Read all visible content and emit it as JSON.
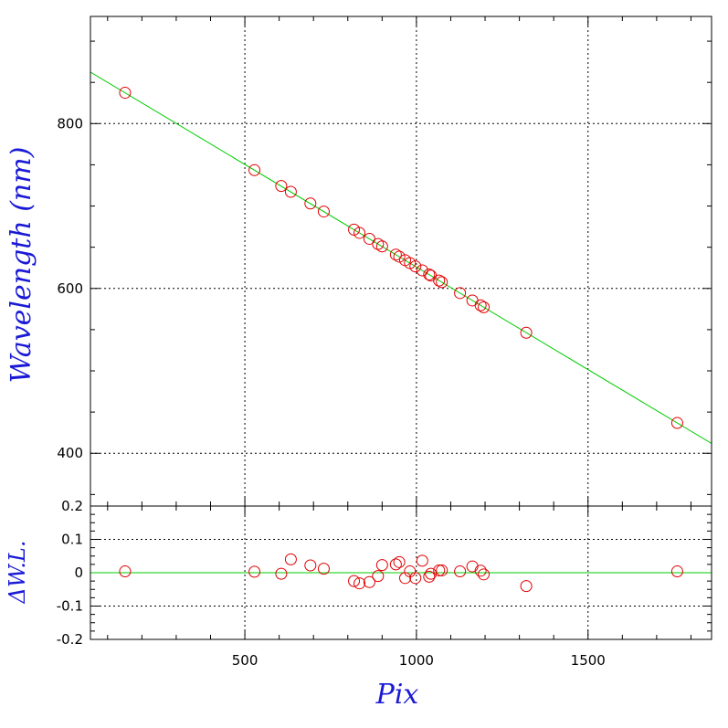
{
  "chart_data": [
    {
      "type": "scatter",
      "panel": "main",
      "xlabel": "",
      "ylabel": "Wavelength (nm)",
      "xlim": [
        50,
        1860
      ],
      "ylim": [
        336,
        930
      ],
      "y_ticks": [
        400,
        600,
        800
      ],
      "y_tick_labels": [
        "400",
        "600",
        "800"
      ],
      "grid": true,
      "fit_line": {
        "slope": -0.2489,
        "intercept": 874.9,
        "color": "#00cc00"
      },
      "marker_color": "#e00000",
      "points": [
        {
          "x": 151,
          "y": 837.4
        },
        {
          "x": 528,
          "y": 743.5
        },
        {
          "x": 606,
          "y": 724.3
        },
        {
          "x": 634,
          "y": 717.2
        },
        {
          "x": 691,
          "y": 703.1
        },
        {
          "x": 730,
          "y": 693.3
        },
        {
          "x": 818,
          "y": 671.4
        },
        {
          "x": 834,
          "y": 667.4
        },
        {
          "x": 863,
          "y": 660.2
        },
        {
          "x": 888,
          "y": 653.9
        },
        {
          "x": 900,
          "y": 651.0
        },
        {
          "x": 940,
          "y": 641.1
        },
        {
          "x": 950,
          "y": 638.6
        },
        {
          "x": 967,
          "y": 634.3
        },
        {
          "x": 981,
          "y": 630.8
        },
        {
          "x": 997,
          "y": 626.8
        },
        {
          "x": 1017,
          "y": 621.9
        },
        {
          "x": 1037,
          "y": 616.9
        },
        {
          "x": 1042,
          "y": 615.6
        },
        {
          "x": 1066,
          "y": 609.6
        },
        {
          "x": 1074,
          "y": 607.6
        },
        {
          "x": 1127,
          "y": 594.4
        },
        {
          "x": 1163,
          "y": 585.4
        },
        {
          "x": 1187,
          "y": 579.5
        },
        {
          "x": 1196,
          "y": 577.2
        },
        {
          "x": 1320,
          "y": 546.3
        },
        {
          "x": 1760,
          "y": 436.8
        }
      ]
    },
    {
      "type": "scatter",
      "panel": "residuals",
      "xlabel": "Pix",
      "ylabel": "ΔW.L.",
      "xlim": [
        50,
        1860
      ],
      "ylim": [
        -0.2,
        0.2
      ],
      "x_ticks": [
        500,
        1000,
        1500
      ],
      "x_tick_labels": [
        "500",
        "1000",
        "1500"
      ],
      "y_ticks": [
        -0.2,
        -0.1,
        0,
        0.1,
        0.2
      ],
      "y_tick_labels": [
        "-0.2",
        "-0.1",
        "0",
        "0.1",
        "0.2"
      ],
      "grid": true,
      "zero_line_color": "#00cc00",
      "marker_color": "#e00000",
      "points": [
        {
          "x": 151,
          "y": 0.004
        },
        {
          "x": 528,
          "y": 0.003
        },
        {
          "x": 606,
          "y": -0.003
        },
        {
          "x": 634,
          "y": 0.04
        },
        {
          "x": 691,
          "y": 0.022
        },
        {
          "x": 730,
          "y": 0.012
        },
        {
          "x": 818,
          "y": -0.025
        },
        {
          "x": 834,
          "y": -0.032
        },
        {
          "x": 863,
          "y": -0.028
        },
        {
          "x": 888,
          "y": -0.01
        },
        {
          "x": 900,
          "y": 0.023
        },
        {
          "x": 940,
          "y": 0.025
        },
        {
          "x": 950,
          "y": 0.032
        },
        {
          "x": 967,
          "y": -0.016
        },
        {
          "x": 981,
          "y": 0.004
        },
        {
          "x": 997,
          "y": -0.016
        },
        {
          "x": 1017,
          "y": 0.036
        },
        {
          "x": 1037,
          "y": -0.012
        },
        {
          "x": 1042,
          "y": -0.003
        },
        {
          "x": 1066,
          "y": 0.007
        },
        {
          "x": 1074,
          "y": 0.007
        },
        {
          "x": 1127,
          "y": 0.004
        },
        {
          "x": 1163,
          "y": 0.019
        },
        {
          "x": 1187,
          "y": 0.006
        },
        {
          "x": 1196,
          "y": -0.005
        },
        {
          "x": 1320,
          "y": -0.04
        },
        {
          "x": 1760,
          "y": 0.004
        }
      ]
    }
  ]
}
